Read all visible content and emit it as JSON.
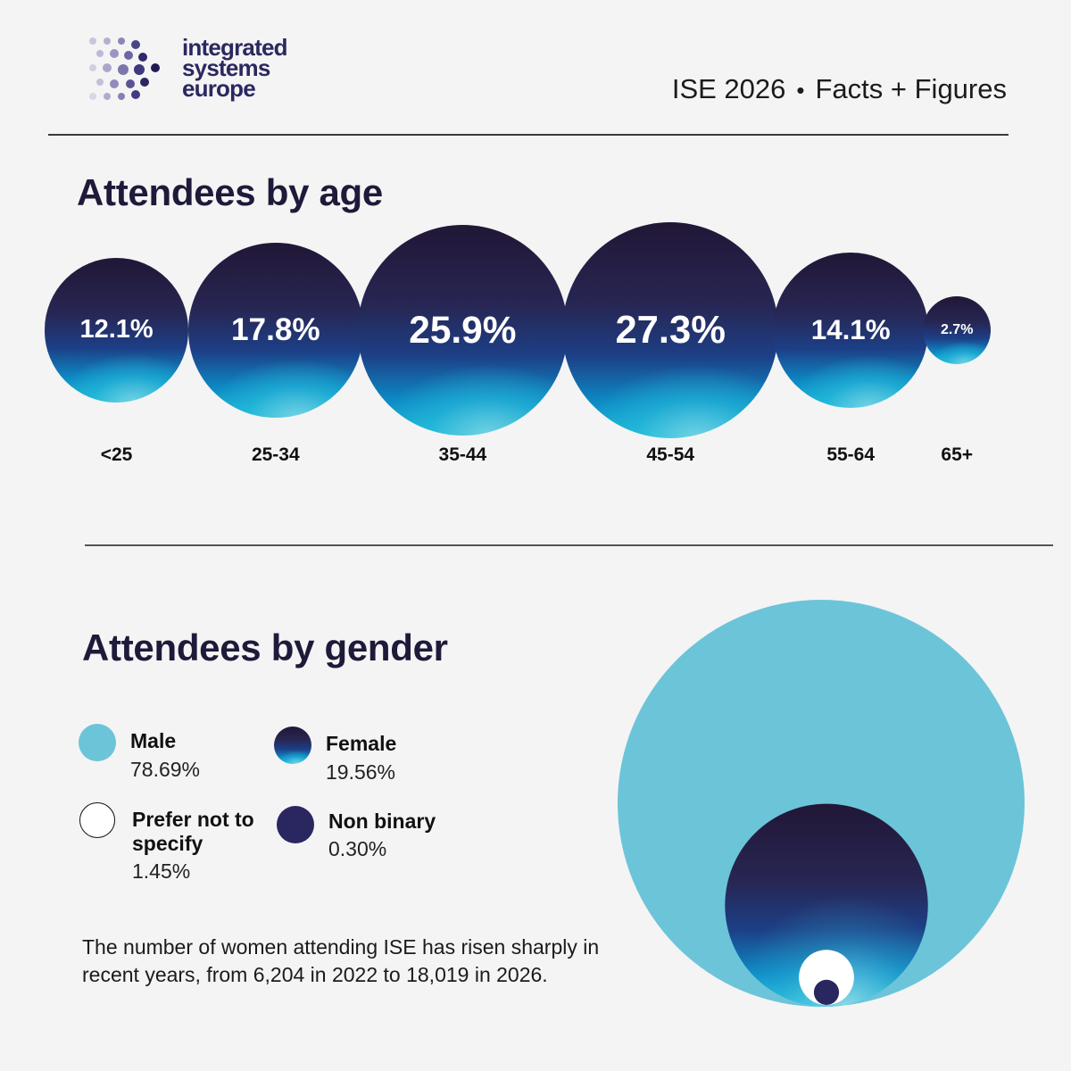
{
  "brand": {
    "logo_lines": [
      "integrated",
      "systems",
      "europe"
    ],
    "header_left": "ISE 2026",
    "header_sep": "•",
    "header_right": "Facts + Figures"
  },
  "colors": {
    "navy": "#1d1a3a",
    "male": "#6cc4d9",
    "non_binary": "#2a2660",
    "prefer_not": "#ffffff"
  },
  "age_section": {
    "title": "Attendees by age"
  },
  "gender_section": {
    "title": "Attendees by gender",
    "legend": [
      {
        "name": "Male",
        "value": "78.69%"
      },
      {
        "name": "Female",
        "value": "19.56%"
      },
      {
        "name": "Prefer not to specify",
        "value": "1.45%"
      },
      {
        "name": "Non binary",
        "value": "0.30%"
      }
    ],
    "note": "The number of women attending ISE has risen sharply in recent years, from 6,204 in 2022 to 18,019 in 2026."
  },
  "chart_data": [
    {
      "type": "bubble",
      "title": "Attendees by age",
      "categories": [
        "<25",
        "25-34",
        "35-44",
        "45-54",
        "55-64",
        "65+"
      ],
      "values": [
        12.1,
        17.8,
        25.9,
        27.3,
        14.1,
        2.7
      ],
      "labels": [
        "12.1%",
        "17.8%",
        "25.9%",
        "27.3%",
        "14.1%",
        "2.7%"
      ],
      "unit": "%"
    },
    {
      "type": "nested-bubble",
      "title": "Attendees by gender",
      "categories": [
        "Male",
        "Female",
        "Prefer not to specify",
        "Non binary"
      ],
      "values": [
        78.69,
        19.56,
        1.45,
        0.3
      ],
      "unit": "%"
    }
  ]
}
